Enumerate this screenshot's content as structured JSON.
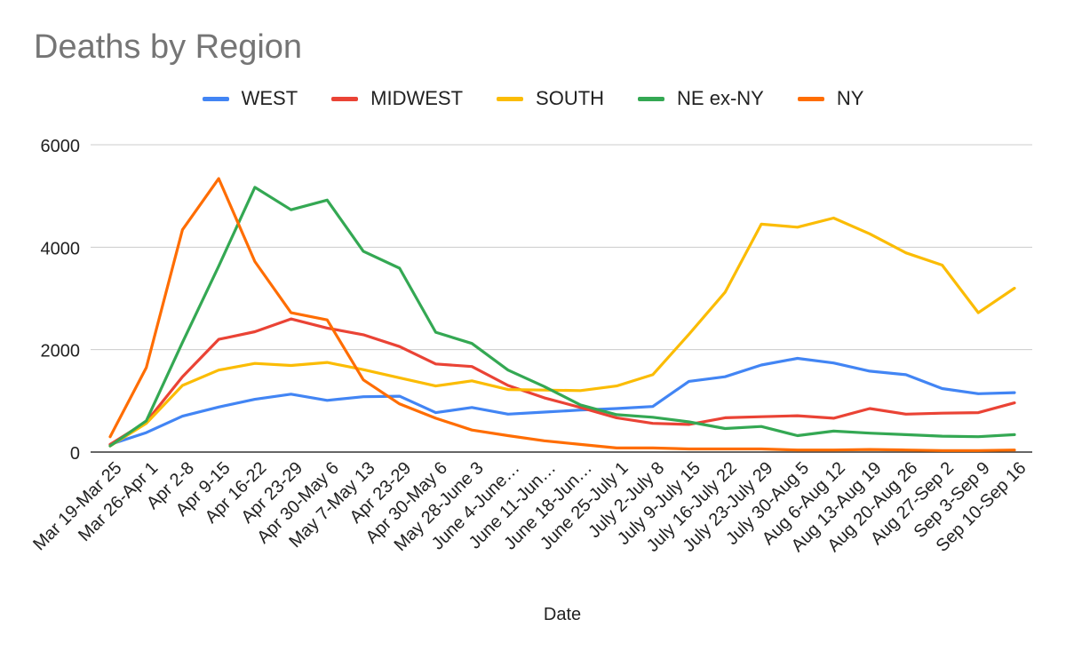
{
  "chart_data": {
    "type": "line",
    "title": "Deaths by Region",
    "xlabel": "Date",
    "ylabel": "",
    "ylim": [
      0,
      6000
    ],
    "yticks": [
      0,
      2000,
      4000,
      6000
    ],
    "grid": true,
    "legend_position": "top",
    "categories": [
      "Mar 19-Mar 25",
      "Mar 26-Apr 1",
      "Apr 2-8",
      "Apr 9-15",
      "Apr 16-22",
      "Apr 23-29",
      "Apr 30-May 6",
      "May 7-May 13",
      "Apr 23-29",
      "Apr 30-May 6",
      "May 28-June 3",
      "June 4-June…",
      "June 11-Jun…",
      "June 18-Jun…",
      "June 25-July 1",
      "July 2-July 8",
      "July 9-July 15",
      "July 16-July 22",
      "July 23-July 29",
      "July 30-Aug 5",
      "Aug 6-Aug 12",
      "Aug 13-Aug 19",
      "Aug 20-Aug 26",
      "Aug 27-Sep 2",
      "Sep 3-Sep 9",
      "Sep 10-Sep 16"
    ],
    "series": [
      {
        "name": "WEST",
        "color": "#4285f4",
        "values": [
          150,
          380,
          700,
          880,
          1030,
          1130,
          1010,
          1080,
          1090,
          770,
          870,
          740,
          780,
          820,
          850,
          890,
          1380,
          1470,
          1700,
          1830,
          1740,
          1580,
          1510,
          1240,
          1140,
          1160
        ]
      },
      {
        "name": "MIDWEST",
        "color": "#ea4335",
        "values": [
          150,
          590,
          1470,
          2200,
          2350,
          2600,
          2420,
          2290,
          2060,
          1720,
          1670,
          1300,
          1060,
          870,
          670,
          560,
          540,
          670,
          690,
          710,
          660,
          850,
          740,
          760,
          770,
          960
        ]
      },
      {
        "name": "SOUTH",
        "color": "#fbbc04",
        "values": [
          120,
          560,
          1300,
          1600,
          1730,
          1690,
          1750,
          1610,
          1450,
          1290,
          1390,
          1220,
          1210,
          1200,
          1290,
          1510,
          2300,
          3120,
          4450,
          4390,
          4570,
          4260,
          3890,
          3650,
          2720,
          3200
        ]
      },
      {
        "name": "NE ex-NY",
        "color": "#34a853",
        "values": [
          120,
          610,
          2140,
          3630,
          5170,
          4730,
          4920,
          3920,
          3590,
          2340,
          2120,
          1600,
          1280,
          920,
          730,
          680,
          590,
          460,
          500,
          320,
          410,
          370,
          340,
          310,
          300,
          340
        ]
      },
      {
        "name": "NY",
        "color": "#ff6d01",
        "values": [
          300,
          1650,
          4340,
          5340,
          3720,
          2720,
          2580,
          1410,
          940,
          660,
          430,
          320,
          220,
          150,
          80,
          80,
          60,
          60,
          60,
          40,
          40,
          50,
          40,
          30,
          30,
          40
        ]
      }
    ]
  }
}
